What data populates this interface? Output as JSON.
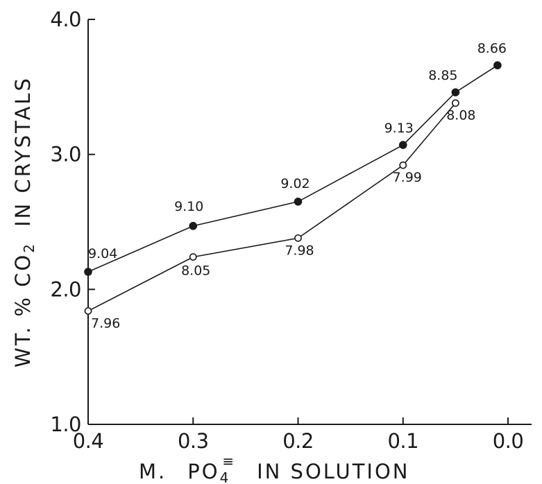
{
  "chart_data": {
    "type": "line",
    "title": "",
    "xlabel": "M. PO₄≡ IN SOLUTION",
    "xlabel_parts": {
      "prefix": "M.",
      "chem": "PO",
      "sub": "4",
      "sup": "≡",
      "suffix": "IN SOLUTION"
    },
    "ylabel": "WT. % CO₂ IN CRYSTALS",
    "ylabel_parts": {
      "prefix": "WT. % CO",
      "sub": "2",
      "suffix": "IN CRYSTALS"
    },
    "xlim": [
      0.4,
      0.0
    ],
    "ylim": [
      1.0,
      4.0
    ],
    "x_ticks": [
      0.4,
      0.3,
      0.2,
      0.1,
      0.0
    ],
    "x_tick_labels": [
      "0.4",
      "0.3",
      "0.2",
      "0.1",
      "0.0"
    ],
    "y_ticks": [
      1.0,
      2.0,
      3.0,
      4.0
    ],
    "y_tick_labels": [
      "1.0",
      "2.0",
      "3.0",
      "4.0"
    ],
    "grid": false,
    "series": [
      {
        "marker": "filled-circle",
        "x": [
          0.4,
          0.3,
          0.2,
          0.1,
          0.05,
          0.01
        ],
        "y": [
          2.13,
          2.47,
          2.65,
          3.07,
          3.46,
          3.66
        ],
        "point_labels": [
          "9.04",
          "9.10",
          "9.02",
          "9.13",
          "8.85",
          "8.66"
        ]
      },
      {
        "marker": "open-circle",
        "x": [
          0.4,
          0.3,
          0.2,
          0.1,
          0.05
        ],
        "y": [
          1.84,
          2.24,
          2.38,
          2.92,
          3.38
        ],
        "point_labels": [
          "7.96",
          "8.05",
          "7.98",
          "7.99",
          "8.08"
        ]
      }
    ]
  }
}
